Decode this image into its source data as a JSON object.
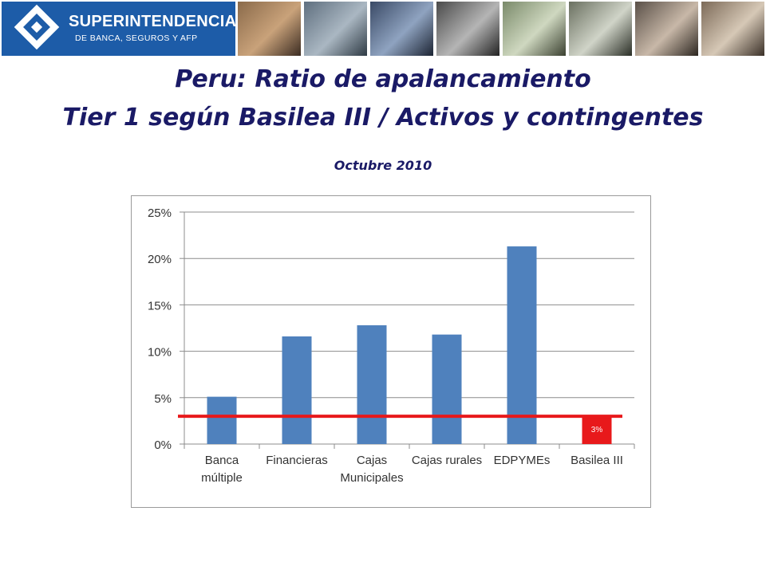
{
  "header": {
    "logo_line1": "SUPERINTENDENCIA",
    "logo_line2": "DE BANCA, SEGUROS Y AFP",
    "logo_icon": "sbs-diamond-logo",
    "photos": [
      "credit-card",
      "building",
      "keyboard-enter",
      "laptop",
      "calculator",
      "card-terminal",
      "handshake",
      "signing-document"
    ]
  },
  "title_line1": "Peru: Ratio de apalancamiento",
  "title_line2": "Tier 1 según Basilea III / Activos y contingentes",
  "subtitle": "Octubre 2010",
  "colors": {
    "title": "#1a1a66",
    "bars": "#4f81bd",
    "threshold": "#e8191b",
    "banner": "#1d5ca8"
  },
  "chart_data": {
    "type": "bar",
    "categories": [
      [
        "Banca",
        "múltiple"
      ],
      [
        "Financieras"
      ],
      [
        "Cajas",
        "Municipales"
      ],
      [
        "Cajas rurales"
      ],
      [
        "EDPYMEs"
      ],
      [
        "Basilea III"
      ]
    ],
    "values": [
      5.1,
      11.6,
      12.8,
      11.8,
      21.3,
      3.0
    ],
    "highlight_index": 5,
    "data_labels": [
      "",
      "",
      "",
      "",
      "",
      "3%"
    ],
    "yticks": [
      "0%",
      "5%",
      "10%",
      "15%",
      "20%",
      "25%"
    ],
    "ylim": [
      0,
      25
    ],
    "reference_line": 3,
    "grid": true,
    "legend": "none",
    "title": "",
    "xlabel": "",
    "ylabel": ""
  }
}
